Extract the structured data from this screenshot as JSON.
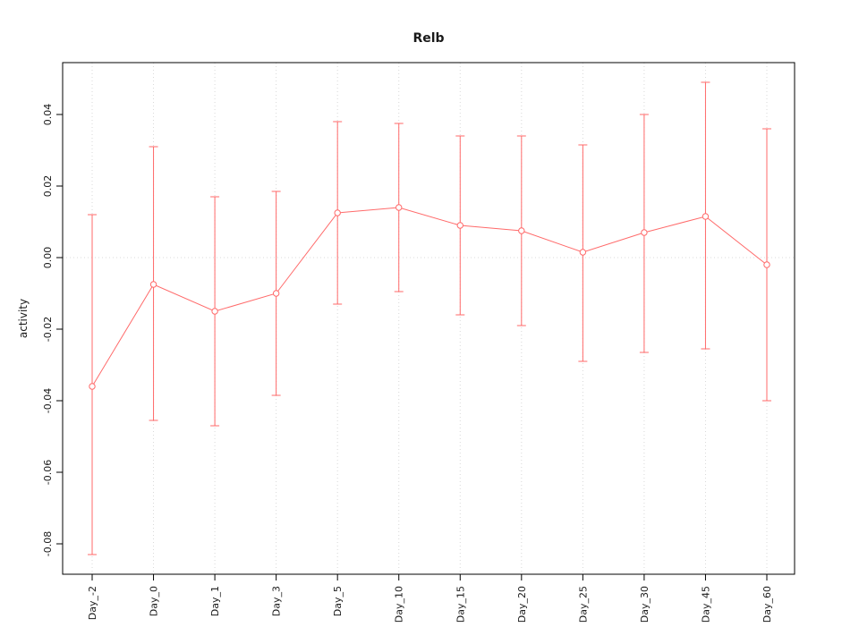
{
  "chart_data": {
    "type": "line",
    "title": "Relb",
    "xlabel": "",
    "ylabel": "activity",
    "categories": [
      "Day_-2",
      "Day_0",
      "Day_1",
      "Day_3",
      "Day_5",
      "Day_10",
      "Day_15",
      "Day_20",
      "Day_25",
      "Day_30",
      "Day_45",
      "Day_60"
    ],
    "series": [
      {
        "name": "Relb activity",
        "color": "#ff6a6a",
        "values": [
          -0.036,
          -0.0075,
          -0.015,
          -0.01,
          0.0125,
          0.014,
          0.009,
          0.0075,
          0.0015,
          0.007,
          0.0115,
          -0.002
        ],
        "upper": [
          0.012,
          0.031,
          0.017,
          0.0185,
          0.038,
          0.0375,
          0.034,
          0.034,
          0.0315,
          0.04,
          0.049,
          0.036
        ],
        "lower": [
          -0.083,
          -0.0455,
          -0.047,
          -0.0385,
          -0.013,
          -0.0095,
          -0.016,
          -0.019,
          -0.029,
          -0.0265,
          -0.0255,
          -0.04
        ]
      }
    ],
    "ylim": [
      -0.0885,
      0.0545
    ],
    "yticks": [
      0.04,
      0.02,
      0.0,
      -0.02,
      -0.04,
      -0.06,
      -0.08
    ],
    "grid": "vertical dotted line per category, horizontal dotted line at y=0",
    "grid_color": "#d8d8d8",
    "legend_position": "none",
    "point_style": "open-circle",
    "error_bars": true
  }
}
